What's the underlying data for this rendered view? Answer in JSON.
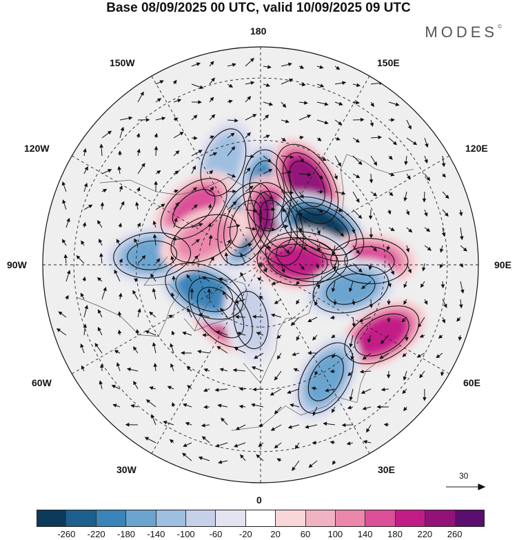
{
  "title": "Base 08/09/2025 00 UTC, valid 10/09/2025 09 UTC",
  "brand": "MODES",
  "brand_mark": "©",
  "longitude_labels": {
    "n180": "180",
    "w150": "150W",
    "e150": "150E",
    "w120": "120W",
    "e120": "120E",
    "w90": "90W",
    "e90": "90E",
    "w60": "60W",
    "e60": "60E",
    "w30": "30W",
    "e30": "30E",
    "s0": "0"
  },
  "vector_scale_label": "30",
  "colorbar": {
    "colors": [
      "#0d3a5a",
      "#1d5f8d",
      "#3a84b9",
      "#6aa4cf",
      "#9ebfe0",
      "#c6d0e8",
      "#e4e4f1",
      "#ffffff",
      "#f8d7d9",
      "#f1b3c2",
      "#ea87ab",
      "#dc4f99",
      "#c21d87",
      "#93127a",
      "#5c0d70"
    ],
    "ticks": [
      "-260",
      "-220",
      "-180",
      "-140",
      "-100",
      "-60",
      "-20",
      "20",
      "60",
      "100",
      "140",
      "180",
      "220",
      "260"
    ]
  },
  "anomaly_centers": [
    {
      "lon": -160,
      "lat": 55,
      "value": -120
    },
    {
      "lon": -130,
      "lat": 62,
      "value": 160
    },
    {
      "lon": -160,
      "lat": 76,
      "value": -220
    },
    {
      "lon": 175,
      "lat": 66,
      "value": -180
    },
    {
      "lon": 150,
      "lat": 60,
      "value": 230
    },
    {
      "lon": 160,
      "lat": 76,
      "value": 220
    },
    {
      "lon": 120,
      "lat": 67,
      "value": -260
    },
    {
      "lon": 92,
      "lat": 55,
      "value": 160
    },
    {
      "lon": 100,
      "lat": 75,
      "value": -200
    },
    {
      "lon": 95,
      "lat": 78,
      "value": 180
    },
    {
      "lon": 75,
      "lat": 60,
      "value": -160
    },
    {
      "lon": 60,
      "lat": 45,
      "value": 180
    },
    {
      "lon": 30,
      "lat": 48,
      "value": -160
    },
    {
      "lon": -40,
      "lat": 70,
      "value": 180
    },
    {
      "lon": -65,
      "lat": 70,
      "value": -200
    },
    {
      "lon": -95,
      "lat": 55,
      "value": -160
    },
    {
      "lon": -115,
      "lat": 70,
      "value": 130
    },
    {
      "lon": -10,
      "lat": 72,
      "value": -80
    }
  ]
}
